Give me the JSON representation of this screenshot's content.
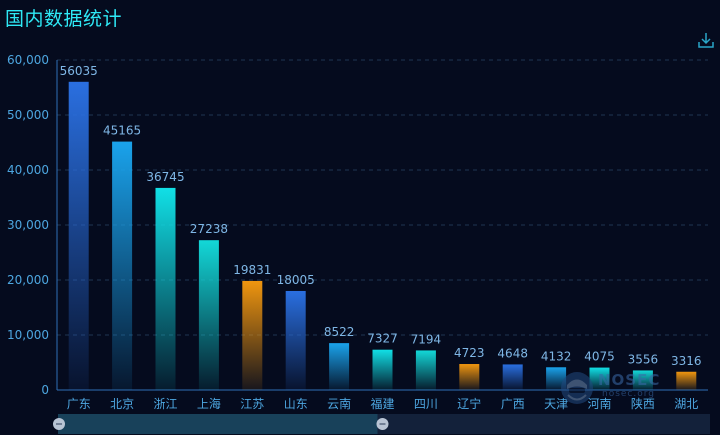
{
  "header": {
    "title": "国内数据统计"
  },
  "toolbox": {
    "download_icon": "download-icon"
  },
  "watermark": {
    "brand": "NOSEC",
    "domain": "nosec.org"
  },
  "colors": {
    "background": "#050b1e",
    "title": "#2ee8f5",
    "axis_text": "#4da6e0",
    "label_text": "#7fb7e6",
    "grid": "#1f3553",
    "blue_top": "#2a6fe0",
    "sky_top": "#1aa3ec",
    "cyan_top": "#11e0e6",
    "teal_top": "#13d8d8",
    "orange_top": "#f0960f"
  },
  "chart_data": {
    "type": "bar",
    "categories": [
      "广东",
      "北京",
      "浙江",
      "上海",
      "江苏",
      "山东",
      "云南",
      "福建",
      "四川",
      "辽宁",
      "广西",
      "天津",
      "河南",
      "陕西",
      "湖北"
    ],
    "values": [
      56035,
      45165,
      36745,
      27238,
      19831,
      18005,
      8522,
      7327,
      7194,
      4723,
      4648,
      4132,
      4075,
      3556,
      3316
    ],
    "bar_colors": [
      "blue",
      "sky",
      "cyan",
      "teal",
      "orange",
      "blue",
      "sky",
      "cyan",
      "teal",
      "orange",
      "blue",
      "sky",
      "cyan",
      "teal",
      "orange"
    ],
    "ylim": [
      0,
      60000
    ],
    "yticks": [
      "0",
      "10,000",
      "20,000",
      "30,000",
      "40,000",
      "50,000",
      "60,000"
    ],
    "grid": true,
    "title": "国内数据统计",
    "xlabel": "",
    "ylabel": "",
    "data_zoom": {
      "start": 0,
      "end": 0.49
    }
  }
}
